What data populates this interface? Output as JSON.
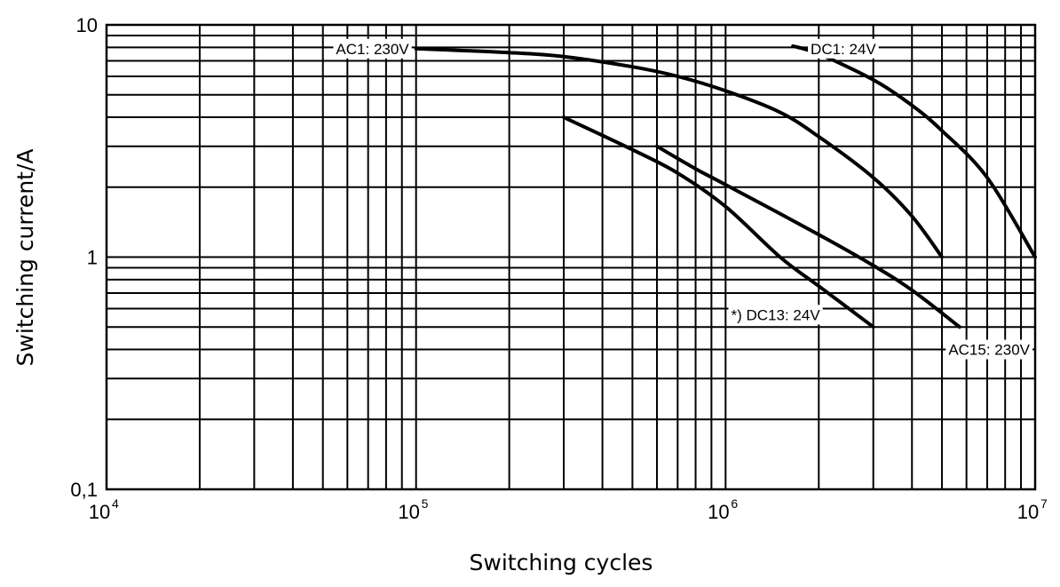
{
  "chart_data": {
    "type": "line",
    "title": "",
    "xlabel": "Switching cycles",
    "ylabel": "Switching current/A",
    "x_scale": "log",
    "y_scale": "log",
    "xlim": [
      10000,
      10000000
    ],
    "ylim": [
      0.1,
      10
    ],
    "grid": true,
    "x_ticks": [
      {
        "value": 10000,
        "base": "10",
        "exp": "4"
      },
      {
        "value": 100000,
        "base": "10",
        "exp": "5"
      },
      {
        "value": 1000000,
        "base": "10",
        "exp": "6"
      },
      {
        "value": 10000000,
        "base": "10",
        "exp": "7"
      }
    ],
    "y_ticks": [
      {
        "value": 10,
        "label": "10"
      },
      {
        "value": 1,
        "label": "1"
      },
      {
        "value": 0.1,
        "label": "0,1"
      }
    ],
    "series": [
      {
        "name": "AC1: 230V",
        "x": [
          100000,
          200000,
          300000,
          500000,
          700000,
          1000000,
          1500000,
          2000000,
          3000000,
          4000000,
          5000000
        ],
        "y": [
          7.9,
          7.6,
          7.3,
          6.6,
          6.0,
          5.2,
          4.2,
          3.3,
          2.2,
          1.5,
          1.0
        ]
      },
      {
        "name": "DC1: 24V",
        "x": [
          1650000,
          2000000,
          3000000,
          4000000,
          5000000,
          7000000,
          10000000
        ],
        "y": [
          8.1,
          7.5,
          5.8,
          4.5,
          3.5,
          2.2,
          1.0
        ]
      },
      {
        "name": "AC15: 230V",
        "x": [
          600000,
          800000,
          1000000,
          2000000,
          3000000,
          4000000,
          5700000
        ],
        "y": [
          3.0,
          2.4,
          2.05,
          1.25,
          0.92,
          0.72,
          0.5
        ]
      },
      {
        "name": "*) DC13: 24V",
        "x": [
          300000,
          500000,
          700000,
          1000000,
          1500000,
          2000000,
          3000000
        ],
        "y": [
          4.0,
          2.9,
          2.3,
          1.65,
          1.0,
          0.75,
          0.5
        ]
      }
    ]
  }
}
